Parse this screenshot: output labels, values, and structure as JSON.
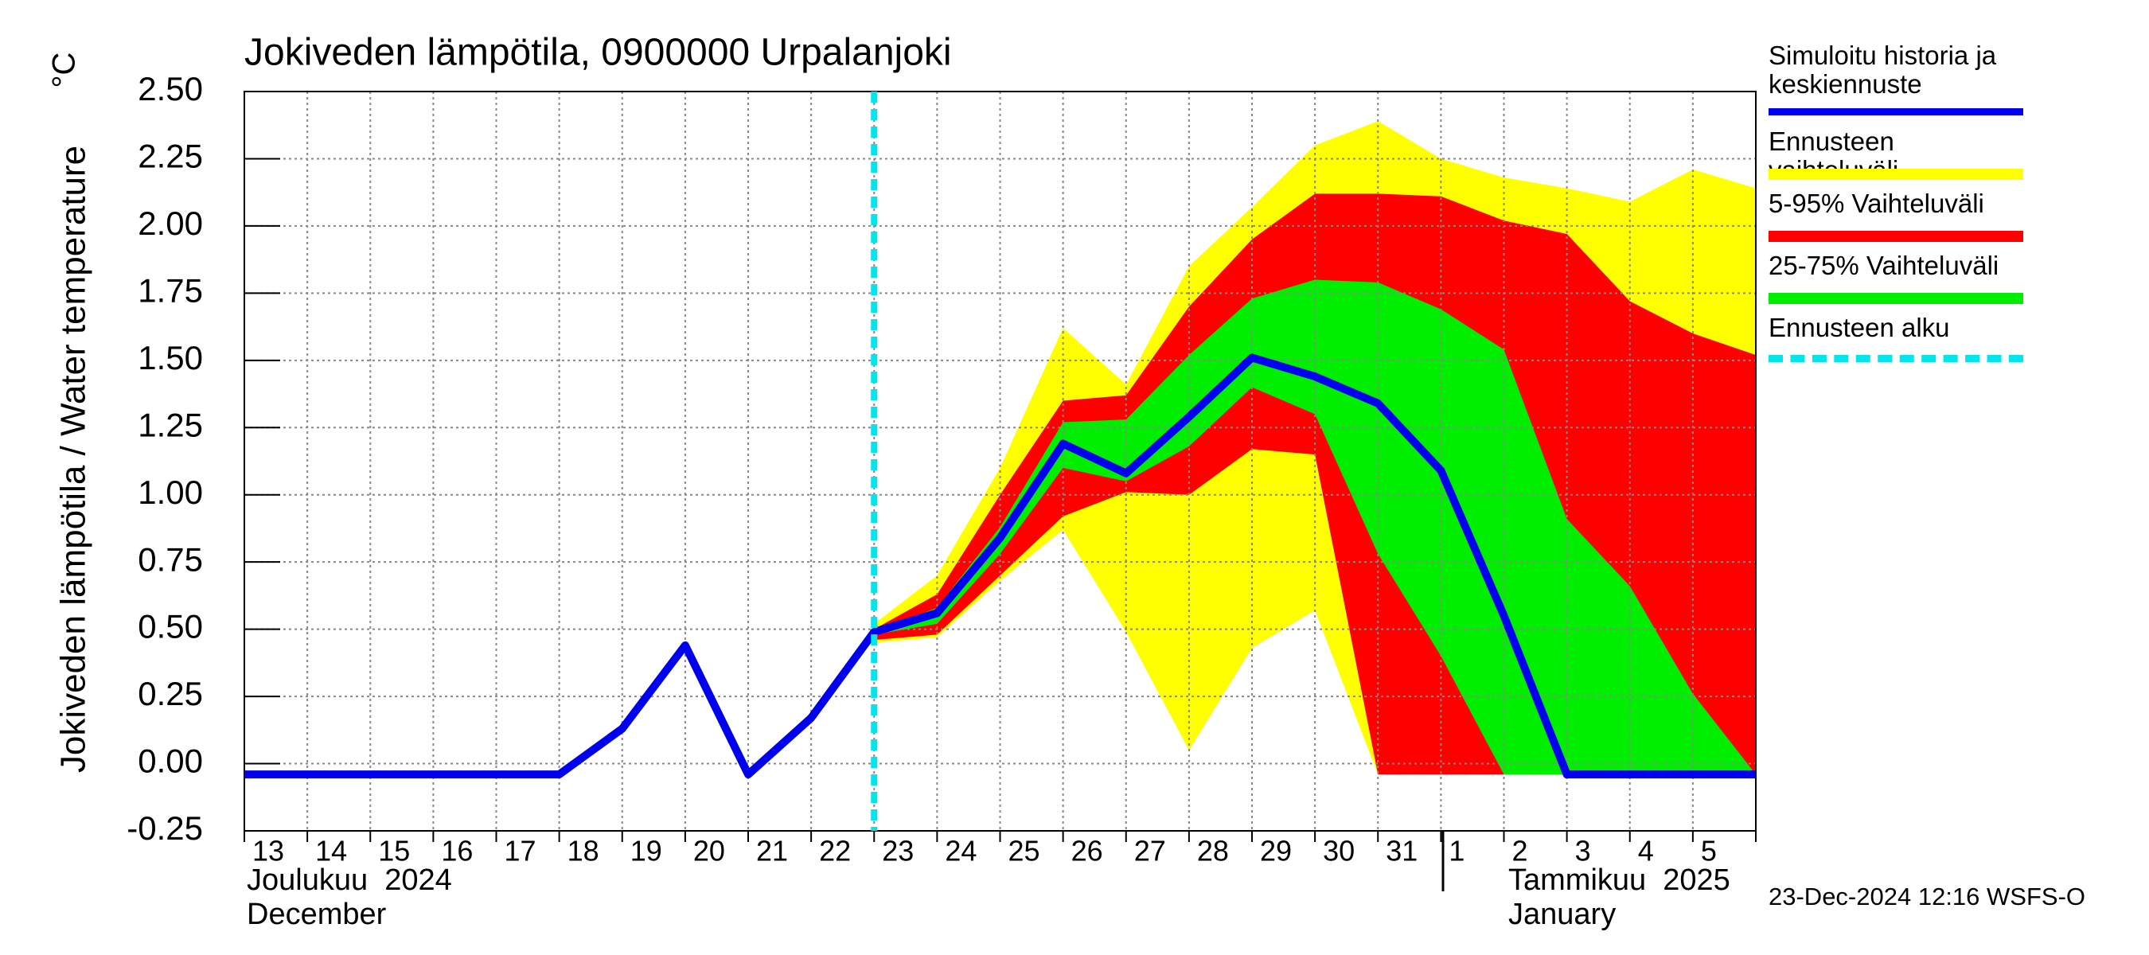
{
  "chart_data": {
    "type": "line",
    "title": "Jokiveden lämpötila, 0900000 Urpalanjoki",
    "y_label": "Jokiveden lämpötila / Water temperature",
    "y_unit": "°C",
    "timestamp": "23-Dec-2024 12:16 WSFS-O",
    "month_labels": [
      "Joulukuu  2024",
      "December",
      "Tammikuu  2025",
      "January"
    ],
    "categories": [
      "13",
      "14",
      "15",
      "16",
      "17",
      "18",
      "19",
      "20",
      "21",
      "22",
      "23",
      "24",
      "25",
      "26",
      "27",
      "28",
      "29",
      "30",
      "31",
      "1",
      "2",
      "3",
      "4",
      "5",
      null
    ],
    "ylim": [
      -0.25,
      2.5
    ],
    "yticks": [
      {
        "value": -0.25,
        "label": "-0.25"
      },
      {
        "value": 0,
        "label": "0.00"
      },
      {
        "value": 0.25,
        "label": "0.25"
      },
      {
        "value": 0.5,
        "label": "0.50"
      },
      {
        "value": 0.75,
        "label": "0.75"
      },
      {
        "value": 1,
        "label": "1.00"
      },
      {
        "value": 1.25,
        "label": "1.25"
      },
      {
        "value": 1.5,
        "label": "1.50"
      },
      {
        "value": 1.75,
        "label": "1.75"
      },
      {
        "value": 2,
        "label": "2.00"
      },
      {
        "value": 2.25,
        "label": "2.25"
      },
      {
        "value": 2.5,
        "label": "2.50"
      }
    ],
    "grid": true,
    "series": [
      {
        "name": "Simuloitu historia ja keskiennuste",
        "kind": "line",
        "color": "#0000ee",
        "values": [
          -0.04,
          -0.04,
          -0.04,
          -0.04,
          -0.04,
          -0.04,
          0.13,
          0.44,
          -0.04,
          0.17,
          0.49,
          0.56,
          0.84,
          1.19,
          1.08,
          1.29,
          1.51,
          1.44,
          1.34,
          1.09,
          0.55,
          -0.04,
          -0.04,
          -0.04,
          -0.04
        ]
      },
      {
        "name": "Ennusteen vaihteluväli",
        "kind": "band",
        "color": "#ffff00",
        "lower": [
          null,
          null,
          null,
          null,
          null,
          null,
          null,
          null,
          null,
          null,
          0.45,
          0.47,
          0.68,
          0.87,
          0.49,
          0.05,
          0.43,
          0.57,
          -0.04,
          -0.04,
          -0.04,
          -0.04,
          -0.04,
          -0.04,
          -0.04
        ],
        "upper": [
          null,
          null,
          null,
          null,
          null,
          null,
          null,
          null,
          null,
          null,
          0.52,
          0.7,
          1.1,
          1.62,
          1.41,
          1.85,
          2.07,
          2.3,
          2.39,
          2.25,
          2.18,
          2.14,
          2.09,
          2.21,
          2.14
        ]
      },
      {
        "name": "5-95% Vaihteluväli",
        "kind": "band",
        "color": "#ff0000",
        "lower": [
          null,
          null,
          null,
          null,
          null,
          null,
          null,
          null,
          null,
          null,
          0.46,
          0.48,
          0.7,
          0.92,
          1.01,
          1.0,
          1.17,
          1.15,
          -0.04,
          -0.04,
          -0.04,
          -0.04,
          -0.04,
          -0.04,
          -0.04
        ],
        "upper": [
          null,
          null,
          null,
          null,
          null,
          null,
          null,
          null,
          null,
          null,
          0.5,
          0.63,
          1.0,
          1.35,
          1.37,
          1.7,
          1.95,
          2.12,
          2.12,
          2.11,
          2.02,
          1.97,
          1.72,
          1.6,
          1.52
        ]
      },
      {
        "name": "25-75% Vaihteluväli",
        "kind": "band",
        "color": "#00ee00",
        "lower": [
          null,
          null,
          null,
          null,
          null,
          null,
          null,
          null,
          null,
          null,
          0.48,
          0.52,
          0.78,
          1.1,
          1.05,
          1.18,
          1.4,
          1.3,
          0.78,
          0.4,
          -0.04,
          -0.04,
          -0.04,
          -0.04,
          -0.04
        ],
        "upper": [
          null,
          null,
          null,
          null,
          null,
          null,
          null,
          null,
          null,
          null,
          0.49,
          0.58,
          0.88,
          1.27,
          1.28,
          1.52,
          1.73,
          1.8,
          1.79,
          1.69,
          1.54,
          0.91,
          0.66,
          0.26,
          -0.04
        ]
      }
    ],
    "forecast_start": {
      "name": "Ennusteen alku",
      "color": "#00e5ee",
      "at": "23"
    }
  }
}
